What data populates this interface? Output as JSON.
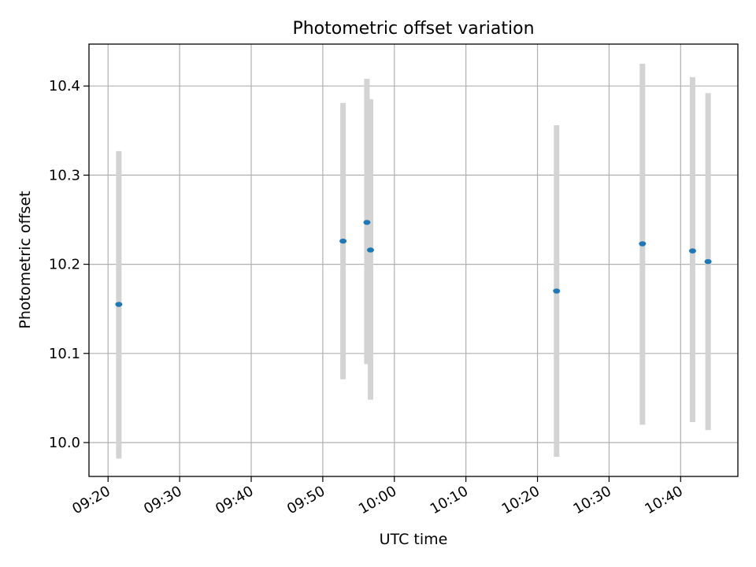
{
  "chart_data": {
    "type": "scatter",
    "title": "Photometric offset variation",
    "xlabel": "UTC time",
    "ylabel": "Photometric offset",
    "x_ticks": [
      "09:20",
      "09:30",
      "09:40",
      "09:50",
      "10:00",
      "10:10",
      "10:20",
      "10:30",
      "10:40"
    ],
    "y_ticks": [
      "10.0",
      "10.1",
      "10.2",
      "10.3",
      "10.4"
    ],
    "xlim": [
      "09:17:20",
      "10:48:00"
    ],
    "ylim": [
      9.962,
      10.447
    ],
    "grid": true,
    "colors": {
      "point": "#1f77b4",
      "errorbar": "#d3d3d3",
      "grid": "#b0b0b0"
    },
    "points": [
      {
        "x": "09:21:30",
        "y": 10.155,
        "ymin": 9.982,
        "ymax": 10.327
      },
      {
        "x": "09:52:50",
        "y": 10.226,
        "ymin": 10.071,
        "ymax": 10.381
      },
      {
        "x": "09:56:10",
        "y": 10.247,
        "ymin": 10.088,
        "ymax": 10.408
      },
      {
        "x": "09:56:40",
        "y": 10.216,
        "ymin": 10.048,
        "ymax": 10.385
      },
      {
        "x": "10:22:40",
        "y": 10.17,
        "ymin": 9.984,
        "ymax": 10.356
      },
      {
        "x": "10:34:40",
        "y": 10.223,
        "ymin": 10.02,
        "ymax": 10.425
      },
      {
        "x": "10:41:40",
        "y": 10.215,
        "ymin": 10.023,
        "ymax": 10.41
      },
      {
        "x": "10:43:50",
        "y": 10.203,
        "ymin": 10.014,
        "ymax": 10.392
      }
    ]
  }
}
